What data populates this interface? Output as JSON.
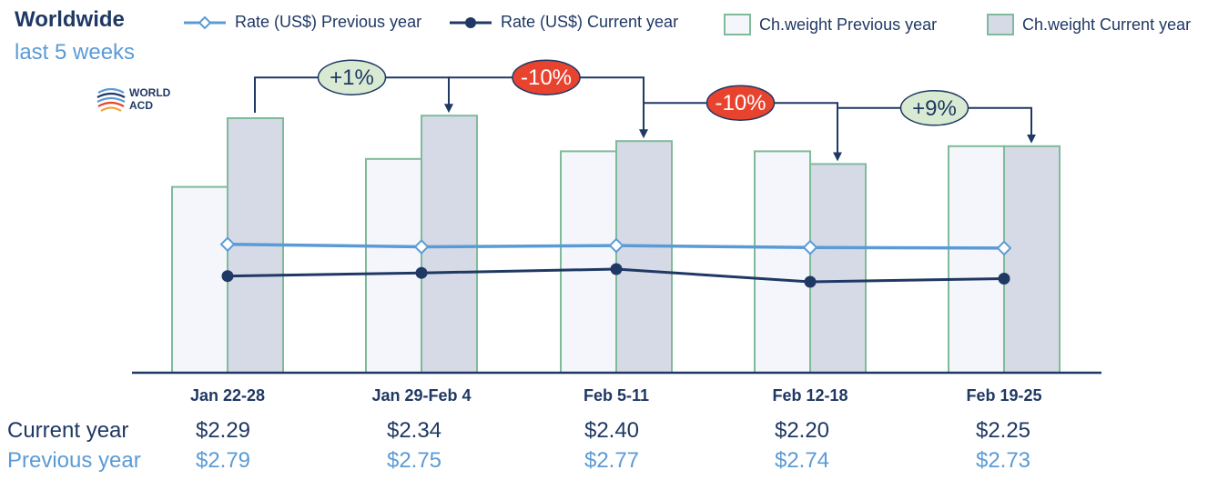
{
  "header": {
    "title": "Worldwide",
    "subtitle": "last 5 weeks",
    "logo_text_line1": "WORLD",
    "logo_text_line2": "ACD"
  },
  "legend": {
    "rate_prev": "Rate (US$) Previous year",
    "rate_cur": "Rate (US$) Current year",
    "cw_prev": "Ch.weight Previous year",
    "cw_cur": "Ch.weight Current year"
  },
  "colors": {
    "navy": "#1f3864",
    "light_blue": "#5b9bd5",
    "bar_border": "#7fba9a",
    "bar_prev_fill": "#f4f6fb",
    "bar_cur_fill": "#d6dae6",
    "pill_positive": "#d9ead3",
    "pill_negative": "#e8432f"
  },
  "chart_data": {
    "type": "bar",
    "categories": [
      "Jan 22-28",
      "Jan 29-Feb 4",
      "Feb 5-11",
      "Feb 12-18",
      "Feb 19-25"
    ],
    "series": [
      {
        "name": "Ch.weight Previous year",
        "kind": "bar",
        "values": [
          0.73,
          0.84,
          0.87,
          0.87,
          0.89
        ]
      },
      {
        "name": "Ch.weight Current year",
        "kind": "bar",
        "values": [
          1.0,
          1.01,
          0.91,
          0.82,
          0.89
        ]
      },
      {
        "name": "Rate (US$) Previous year",
        "kind": "line",
        "values": [
          2.79,
          2.75,
          2.77,
          2.74,
          2.73
        ]
      },
      {
        "name": "Rate (US$) Current year",
        "kind": "line",
        "values": [
          2.29,
          2.34,
          2.4,
          2.2,
          2.25
        ]
      }
    ],
    "week_changes": [
      "+1%",
      "-10%",
      "-10%",
      "+9%"
    ],
    "rate_current_labels": [
      "$2.29",
      "$2.34",
      "$2.40",
      "$2.20",
      "$2.25"
    ],
    "rate_previous_labels": [
      "$2.79",
      "$2.75",
      "$2.77",
      "$2.74",
      "$2.73"
    ],
    "row_labels": {
      "current": "Current year",
      "previous": "Previous year"
    }
  }
}
